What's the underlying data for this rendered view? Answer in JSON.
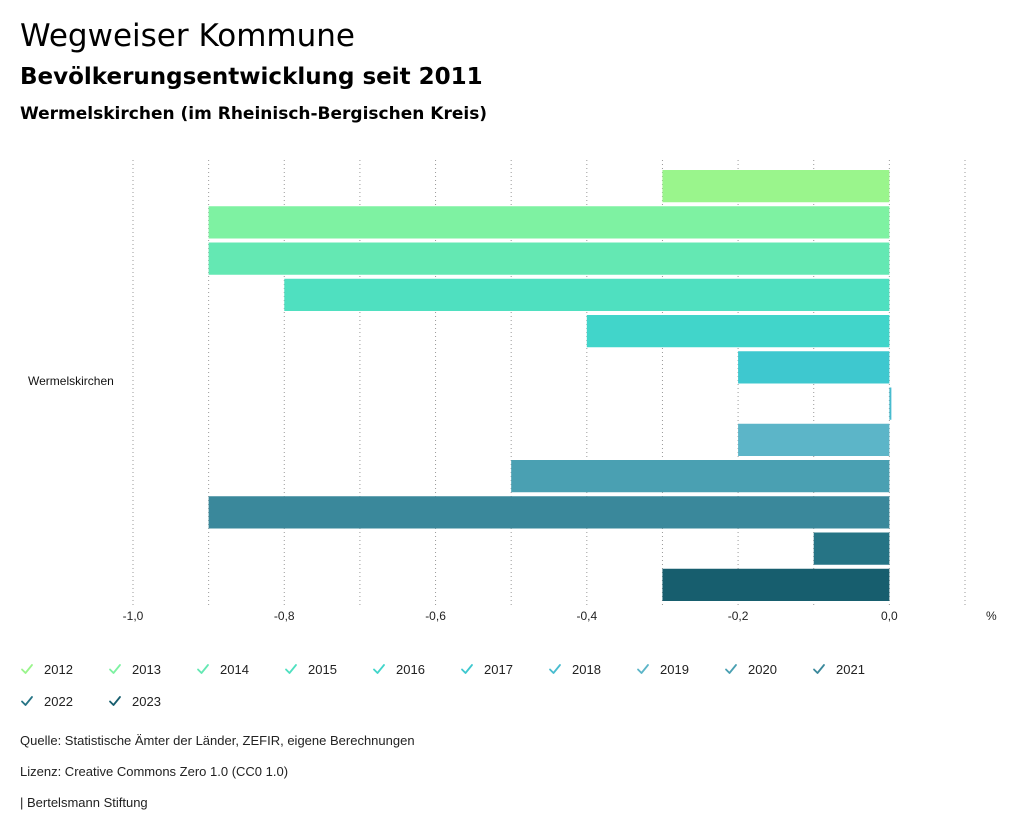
{
  "header": {
    "title": "Wegweiser Kommune",
    "subtitle": "Bevölkerungsentwicklung seit 2011",
    "region": "Wermelskirchen (im Rheinisch-Bergischen Kreis)"
  },
  "chart_data": {
    "type": "bar",
    "orientation": "horizontal",
    "categories": [
      "Wermelskirchen"
    ],
    "series": [
      {
        "name": "2012",
        "values": [
          -0.3
        ],
        "color": "#9af58c"
      },
      {
        "name": "2013",
        "values": [
          -0.9
        ],
        "color": "#7ef2a2"
      },
      {
        "name": "2014",
        "values": [
          -0.9
        ],
        "color": "#64e8b3"
      },
      {
        "name": "2015",
        "values": [
          -0.8
        ],
        "color": "#4fe0c0"
      },
      {
        "name": "2016",
        "values": [
          -0.4
        ],
        "color": "#41d5ca"
      },
      {
        "name": "2017",
        "values": [
          -0.2
        ],
        "color": "#3ec8cf"
      },
      {
        "name": "2018",
        "values": [
          0.0
        ],
        "color": "#48bccf"
      },
      {
        "name": "2019",
        "values": [
          -0.2
        ],
        "color": "#5cb5c8"
      },
      {
        "name": "2020",
        "values": [
          -0.5
        ],
        "color": "#4aa0b2"
      },
      {
        "name": "2021",
        "values": [
          -0.9
        ],
        "color": "#3a889b"
      },
      {
        "name": "2022",
        "values": [
          -0.1
        ],
        "color": "#267485"
      },
      {
        "name": "2023",
        "values": [
          -0.3
        ],
        "color": "#175e6e"
      }
    ],
    "xlim": [
      -1.0,
      0.1
    ],
    "ticks": [
      -1.0,
      -0.8,
      -0.6,
      -0.4,
      -0.2,
      0.0
    ],
    "tick_labels": [
      "-1,0",
      "-0,8",
      "-0,6",
      "-0,4",
      "-0,2",
      "0,0"
    ],
    "unit": "%",
    "grid": true
  },
  "footer": {
    "source": "Quelle: Statistische Ämter der Länder, ZEFIR, eigene Berechnungen",
    "license": "Lizenz: Creative Commons Zero 1.0 (CC0 1.0)",
    "publisher": "| Bertelsmann Stiftung"
  }
}
